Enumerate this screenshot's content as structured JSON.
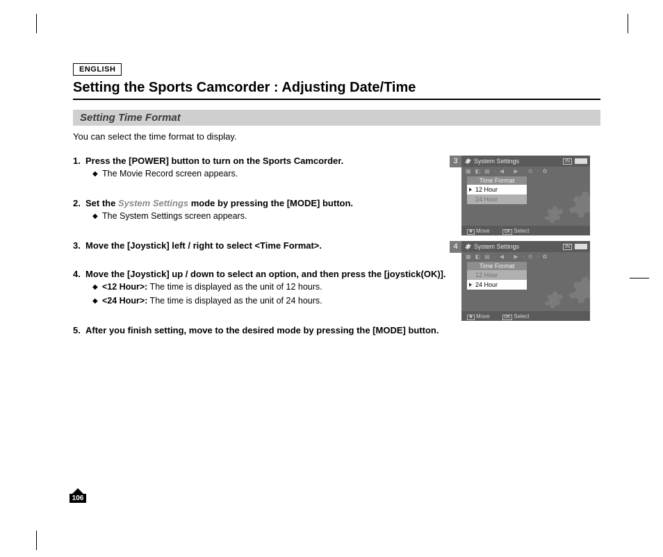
{
  "language_label": "ENGLISH",
  "page_title": "Setting the Sports Camcorder : Adjusting Date/Time",
  "section_title": "Setting Time Format",
  "intro": "You can select the time format to display.",
  "steps": [
    {
      "num": "1.",
      "text_parts": [
        {
          "t": "Press the [POWER] button to turn on the Sports Camcorder."
        }
      ],
      "subs": [
        {
          "bold": "",
          "text": "The Movie Record screen appears."
        }
      ]
    },
    {
      "num": "2.",
      "text_parts": [
        {
          "t": "Set the "
        },
        {
          "t": "System Settings",
          "soft": true
        },
        {
          "t": " mode by pressing the [MODE] button."
        }
      ],
      "subs": [
        {
          "bold": "",
          "text": "The System Settings screen appears."
        }
      ]
    },
    {
      "num": "3.",
      "text_parts": [
        {
          "t": "Move the [Joystick] left / right to select <Time Format>."
        }
      ],
      "subs": []
    },
    {
      "num": "4.",
      "text_parts": [
        {
          "t": "Move the [Joystick] up / down to select an option, and then press the [joystick(OK)]."
        }
      ],
      "subs": [
        {
          "bold": "<12 Hour>:",
          "text": " The time is displayed as the unit of 12 hours."
        },
        {
          "bold": "<24 Hour>:",
          "text": " The time is displayed as the unit of 24 hours."
        }
      ]
    },
    {
      "num": "5.",
      "text_parts": [
        {
          "t": "After you finish setting, move to the desired mode by pressing the [MODE] button."
        }
      ],
      "subs": []
    }
  ],
  "screenshots": [
    {
      "badge": "3",
      "header": "System Settings",
      "in_label": "IN",
      "panel_title": "Time Format",
      "options": [
        {
          "label": "12 Hour",
          "selected": true
        },
        {
          "label": "24 Hour",
          "selected": false
        }
      ],
      "footer_move": "Move",
      "footer_select": "Select",
      "footer_ok": "OK"
    },
    {
      "badge": "4",
      "header": "System Settings",
      "in_label": "IN",
      "panel_title": "Time Format",
      "options": [
        {
          "label": "12 Hour",
          "selected": false
        },
        {
          "label": "24 Hour",
          "selected": true
        }
      ],
      "footer_move": "Move",
      "footer_select": "Select",
      "footer_ok": "OK"
    }
  ],
  "page_number": "106",
  "colors": {
    "subtitle_bg": "#cfcfcf",
    "shot_bg": "#6b6b6b",
    "badge_bg": "#7a7a7a"
  }
}
